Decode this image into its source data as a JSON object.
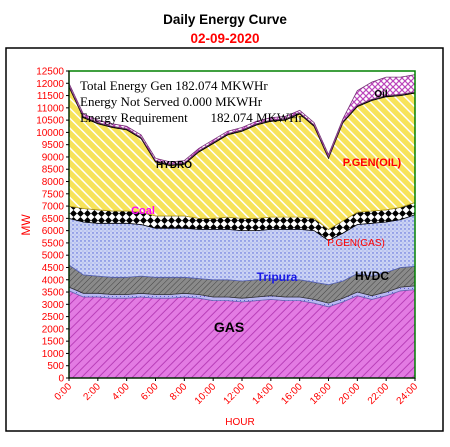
{
  "chart_data": {
    "type": "area",
    "title": "Daily Energy Curve",
    "subtitle": "02-09-2020",
    "xlabel": "HOUR",
    "ylabel": "MW",
    "ylim": [
      0,
      12500
    ],
    "yticks": [
      0,
      500,
      1000,
      1500,
      2000,
      2500,
      3000,
      3500,
      4000,
      4500,
      5000,
      5500,
      6000,
      6500,
      7000,
      7500,
      8000,
      8500,
      9000,
      9500,
      10000,
      10500,
      11000,
      11500,
      12000,
      12500
    ],
    "xtick_labels": [
      "0:00",
      "2:00",
      "4:00",
      "6:00",
      "8:00",
      "10:00",
      "12:00",
      "14:00",
      "16:00",
      "18:00",
      "20:00",
      "22:00",
      "24:00"
    ],
    "x": [
      0,
      1,
      2,
      3,
      4,
      5,
      6,
      7,
      8,
      9,
      10,
      11,
      12,
      13,
      14,
      15,
      16,
      17,
      18,
      19,
      20,
      21,
      22,
      23,
      24
    ],
    "series": [
      {
        "name": "GAS",
        "values": [
          3550,
          3300,
          3300,
          3250,
          3250,
          3300,
          3250,
          3250,
          3300,
          3250,
          3150,
          3150,
          3100,
          3150,
          3200,
          3150,
          3150,
          3050,
          2900,
          3100,
          3350,
          3200,
          3350,
          3550,
          3600
        ]
      },
      {
        "name": "Tripura",
        "values": [
          150,
          150,
          150,
          150,
          150,
          150,
          150,
          150,
          150,
          150,
          150,
          150,
          150,
          150,
          150,
          150,
          150,
          150,
          150,
          150,
          150,
          150,
          150,
          150,
          150
        ]
      },
      {
        "name": "HVDC",
        "values": [
          900,
          750,
          700,
          700,
          700,
          700,
          700,
          700,
          650,
          650,
          700,
          700,
          700,
          700,
          700,
          700,
          700,
          700,
          750,
          700,
          750,
          800,
          800,
          800,
          800
        ]
      },
      {
        "name": "P.GEN(GAS)",
        "values": [
          1900,
          2150,
          2150,
          2200,
          2200,
          2100,
          2000,
          2000,
          2000,
          2000,
          2050,
          2050,
          2050,
          2000,
          2000,
          2050,
          2050,
          2100,
          1800,
          1950,
          2000,
          2150,
          2050,
          1950,
          2100
        ]
      },
      {
        "name": "Coal",
        "values": [
          500,
          550,
          550,
          500,
          500,
          500,
          500,
          500,
          500,
          450,
          450,
          500,
          500,
          500,
          500,
          500,
          500,
          500,
          450,
          500,
          500,
          500,
          500,
          500,
          500
        ]
      },
      {
        "name": "P.GEN(OIL)",
        "values": [
          4850,
          3700,
          3500,
          3400,
          3300,
          3000,
          2200,
          2050,
          2100,
          2700,
          3050,
          3350,
          3550,
          3800,
          3900,
          3950,
          4200,
          3750,
          2900,
          4000,
          4300,
          4500,
          4600,
          4550,
          4450
        ]
      },
      {
        "name": "HYDRO",
        "values": [
          50,
          50,
          50,
          50,
          50,
          50,
          50,
          50,
          50,
          50,
          50,
          50,
          50,
          50,
          50,
          50,
          50,
          50,
          50,
          50,
          50,
          50,
          50,
          50,
          50
        ]
      },
      {
        "name": "Oil",
        "values": [
          100,
          100,
          100,
          100,
          100,
          100,
          100,
          100,
          100,
          100,
          100,
          100,
          100,
          100,
          100,
          100,
          100,
          100,
          100,
          100,
          600,
          700,
          750,
          700,
          700
        ]
      }
    ],
    "annotations": [
      "Total Energy Gen 182.074 MKWHr",
      "Energy Not Served  0.000 MKWHr",
      "Energy Requirement       182.074 MKWHr"
    ],
    "colors": {
      "title": "#000000",
      "subtitle": "#ff0000",
      "axis_text": "#ff0000",
      "border": "#000000",
      "plot_frame": "#008000",
      "gas": "#e37be3",
      "tripura": "#b3b3f2",
      "hvdc": "#7a7a7a",
      "pgen_gas": "#c4cdf2",
      "coal": "#000000",
      "pgen_oil": "#f0d94a",
      "hydro": "#2a2a2a",
      "oil": "#cc66cc",
      "label_gas": "#000000",
      "label_tripura": "#1a1ae6",
      "label_hvdc": "#000000",
      "label_pgen_gas": "#ff0000",
      "label_coal": "#ff00ff",
      "label_pgen_oil": "#ff0000",
      "label_hydro": "#000000",
      "label_oil": "#000000"
    },
    "grid": false,
    "legend": "inline labels"
  }
}
